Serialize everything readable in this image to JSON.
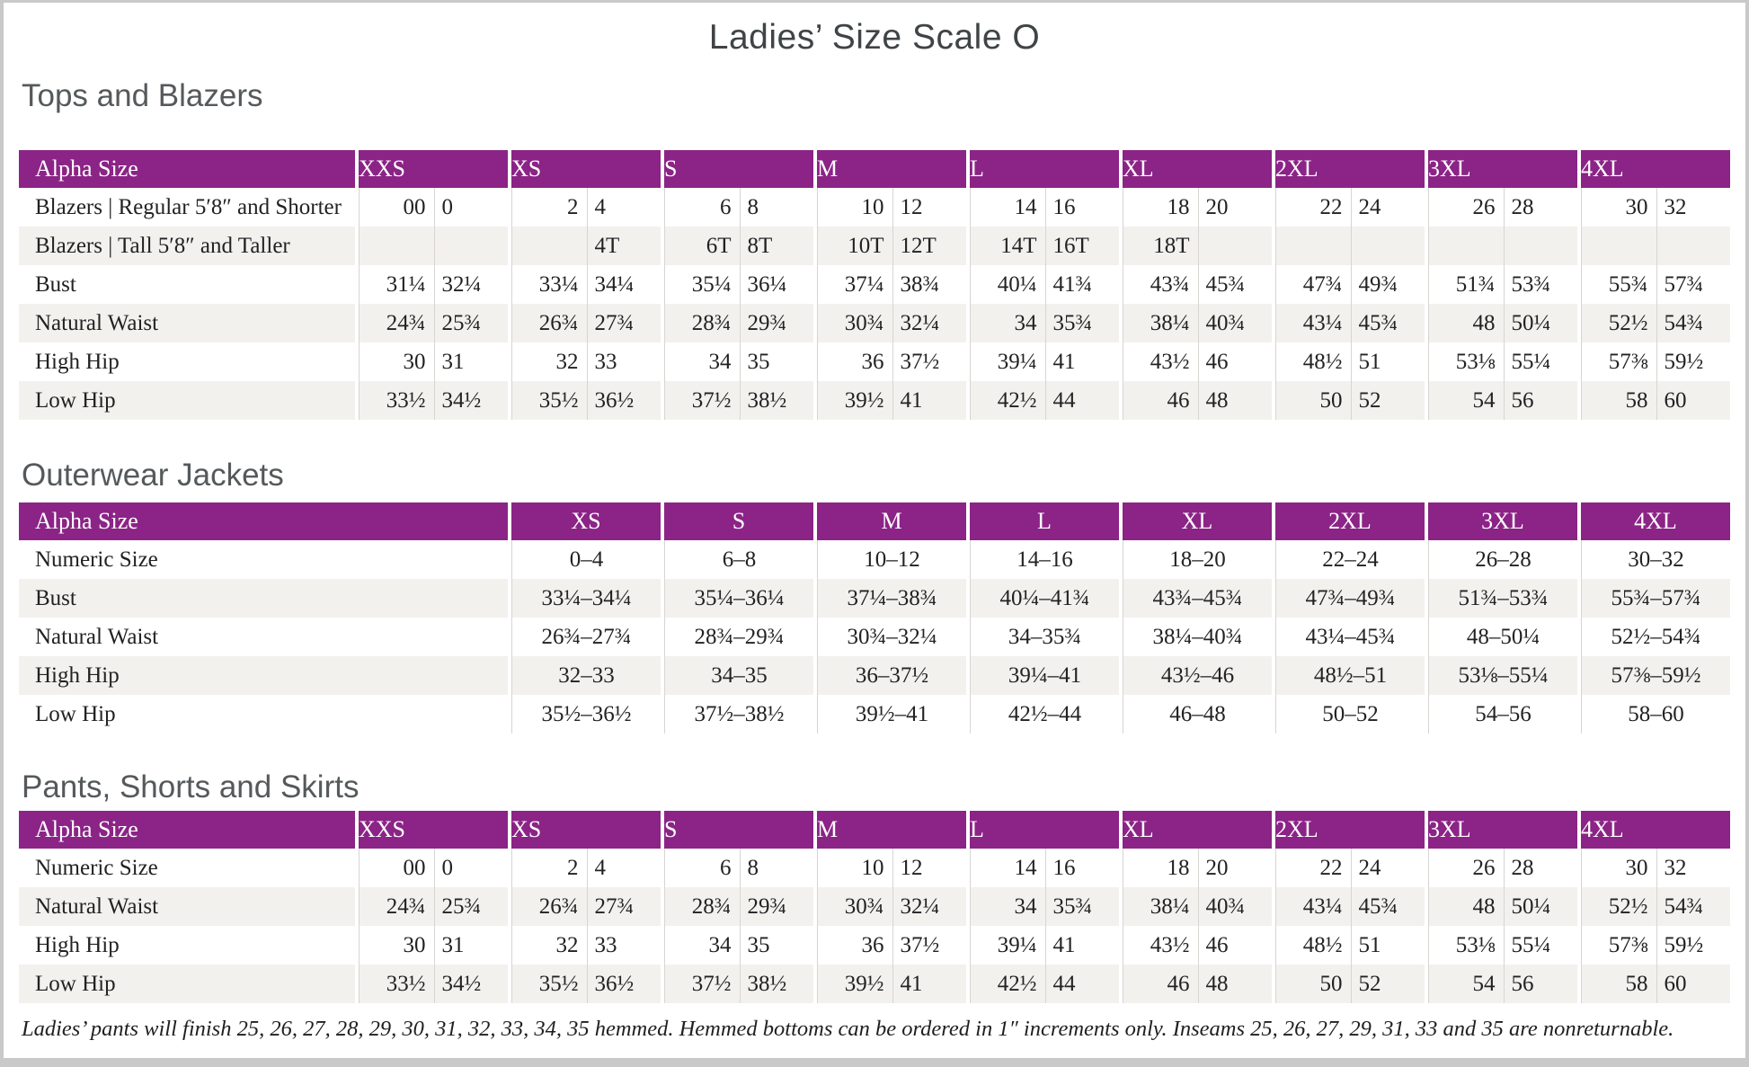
{
  "title": "Ladies’ Size Scale O",
  "footnote": "Ladies’ pants will finish 25, 26, 27, 28, 29, 30, 31, 32, 33, 34, 35 hemmed. Hemmed bottoms can be ordered in 1″ increments only. Inseams 25, 26, 27, 29, 31, 33 and 35 are nonreturnable.",
  "colors": {
    "header_purple": "#8B2486",
    "row_stripe": "#F2F1EE",
    "grid_line": "#D8D5D1",
    "page_border": "#C9C9C9",
    "title_gray": "#3F4446",
    "heading_gray": "#55595B"
  },
  "tables": [
    {
      "heading": "Tops and Blazers",
      "type": "paired",
      "corner": "Alpha Size",
      "sizes": [
        "XXS",
        "XS",
        "S",
        "M",
        "L",
        "XL",
        "2XL",
        "3XL",
        "4XL"
      ],
      "rows": [
        {
          "label": "Blazers | Regular 5′8″ and Shorter",
          "pairs": [
            [
              "00",
              "0"
            ],
            [
              "2",
              "4"
            ],
            [
              "6",
              "8"
            ],
            [
              "10",
              "12"
            ],
            [
              "14",
              "16"
            ],
            [
              "18",
              "20"
            ],
            [
              "22",
              "24"
            ],
            [
              "26",
              "28"
            ],
            [
              "30",
              "32"
            ]
          ]
        },
        {
          "label": "Blazers | Tall 5′8″ and Taller",
          "pairs": [
            [
              "",
              ""
            ],
            [
              "",
              "4T"
            ],
            [
              "6T",
              "8T"
            ],
            [
              "10T",
              "12T"
            ],
            [
              "14T",
              "16T"
            ],
            [
              "18T",
              ""
            ],
            [
              "",
              ""
            ],
            [
              "",
              ""
            ],
            [
              "",
              ""
            ]
          ]
        },
        {
          "label": "Bust",
          "pairs": [
            [
              "31¼",
              "32¼"
            ],
            [
              "33¼",
              "34¼"
            ],
            [
              "35¼",
              "36¼"
            ],
            [
              "37¼",
              "38¾"
            ],
            [
              "40¼",
              "41¾"
            ],
            [
              "43¾",
              "45¾"
            ],
            [
              "47¾",
              "49¾"
            ],
            [
              "51¾",
              "53¾"
            ],
            [
              "55¾",
              "57¾"
            ]
          ]
        },
        {
          "label": "Natural Waist",
          "pairs": [
            [
              "24¾",
              "25¾"
            ],
            [
              "26¾",
              "27¾"
            ],
            [
              "28¾",
              "29¾"
            ],
            [
              "30¾",
              "32¼"
            ],
            [
              "34",
              "35¾"
            ],
            [
              "38¼",
              "40¾"
            ],
            [
              "43¼",
              "45¾"
            ],
            [
              "48",
              "50¼"
            ],
            [
              "52½",
              "54¾"
            ]
          ]
        },
        {
          "label": "High Hip",
          "pairs": [
            [
              "30",
              "31"
            ],
            [
              "32",
              "33"
            ],
            [
              "34",
              "35"
            ],
            [
              "36",
              "37½"
            ],
            [
              "39¼",
              "41"
            ],
            [
              "43½",
              "46"
            ],
            [
              "48½",
              "51"
            ],
            [
              "53⅛",
              "55¼"
            ],
            [
              "57⅜",
              "59½"
            ]
          ]
        },
        {
          "label": "Low Hip",
          "pairs": [
            [
              "33½",
              "34½"
            ],
            [
              "35½",
              "36½"
            ],
            [
              "37½",
              "38½"
            ],
            [
              "39½",
              "41"
            ],
            [
              "42½",
              "44"
            ],
            [
              "46",
              "48"
            ],
            [
              "50",
              "52"
            ],
            [
              "54",
              "56"
            ],
            [
              "58",
              "60"
            ]
          ]
        }
      ]
    },
    {
      "heading": "Outerwear Jackets",
      "type": "range",
      "corner": "Alpha Size",
      "sizes": [
        "XS",
        "S",
        "M",
        "L",
        "XL",
        "2XL",
        "3XL",
        "4XL"
      ],
      "rows": [
        {
          "label": "Numeric Size",
          "values": [
            "0–4",
            "6–8",
            "10–12",
            "14–16",
            "18–20",
            "22–24",
            "26–28",
            "30–32"
          ]
        },
        {
          "label": "Bust",
          "values": [
            "33¼–34¼",
            "35¼–36¼",
            "37¼–38¾",
            "40¼–41¾",
            "43¾–45¾",
            "47¾–49¾",
            "51¾–53¾",
            "55¾–57¾"
          ]
        },
        {
          "label": "Natural Waist",
          "values": [
            "26¾–27¾",
            "28¾–29¾",
            "30¾–32¼",
            "34–35¾",
            "38¼–40¾",
            "43¼–45¾",
            "48–50¼",
            "52½–54¾"
          ]
        },
        {
          "label": "High Hip",
          "values": [
            "32–33",
            "34–35",
            "36–37½",
            "39¼–41",
            "43½–46",
            "48½–51",
            "53⅛–55¼",
            "57⅜–59½"
          ]
        },
        {
          "label": "Low Hip",
          "values": [
            "35½–36½",
            "37½–38½",
            "39½–41",
            "42½–44",
            "46–48",
            "50–52",
            "54–56",
            "58–60"
          ]
        }
      ]
    },
    {
      "heading": "Pants, Shorts and Skirts",
      "type": "paired",
      "corner": "Alpha Size",
      "sizes": [
        "XXS",
        "XS",
        "S",
        "M",
        "L",
        "XL",
        "2XL",
        "3XL",
        "4XL"
      ],
      "rows": [
        {
          "label": "Numeric Size",
          "pairs": [
            [
              "00",
              "0"
            ],
            [
              "2",
              "4"
            ],
            [
              "6",
              "8"
            ],
            [
              "10",
              "12"
            ],
            [
              "14",
              "16"
            ],
            [
              "18",
              "20"
            ],
            [
              "22",
              "24"
            ],
            [
              "26",
              "28"
            ],
            [
              "30",
              "32"
            ]
          ]
        },
        {
          "label": "Natural Waist",
          "pairs": [
            [
              "24¾",
              "25¾"
            ],
            [
              "26¾",
              "27¾"
            ],
            [
              "28¾",
              "29¾"
            ],
            [
              "30¾",
              "32¼"
            ],
            [
              "34",
              "35¾"
            ],
            [
              "38¼",
              "40¾"
            ],
            [
              "43¼",
              "45¾"
            ],
            [
              "48",
              "50¼"
            ],
            [
              "52½",
              "54¾"
            ]
          ]
        },
        {
          "label": "High Hip",
          "pairs": [
            [
              "30",
              "31"
            ],
            [
              "32",
              "33"
            ],
            [
              "34",
              "35"
            ],
            [
              "36",
              "37½"
            ],
            [
              "39¼",
              "41"
            ],
            [
              "43½",
              "46"
            ],
            [
              "48½",
              "51"
            ],
            [
              "53⅛",
              "55¼"
            ],
            [
              "57⅜",
              "59½"
            ]
          ]
        },
        {
          "label": "Low Hip",
          "pairs": [
            [
              "33½",
              "34½"
            ],
            [
              "35½",
              "36½"
            ],
            [
              "37½",
              "38½"
            ],
            [
              "39½",
              "41"
            ],
            [
              "42½",
              "44"
            ],
            [
              "46",
              "48"
            ],
            [
              "50",
              "52"
            ],
            [
              "54",
              "56"
            ],
            [
              "58",
              "60"
            ]
          ]
        }
      ]
    }
  ]
}
